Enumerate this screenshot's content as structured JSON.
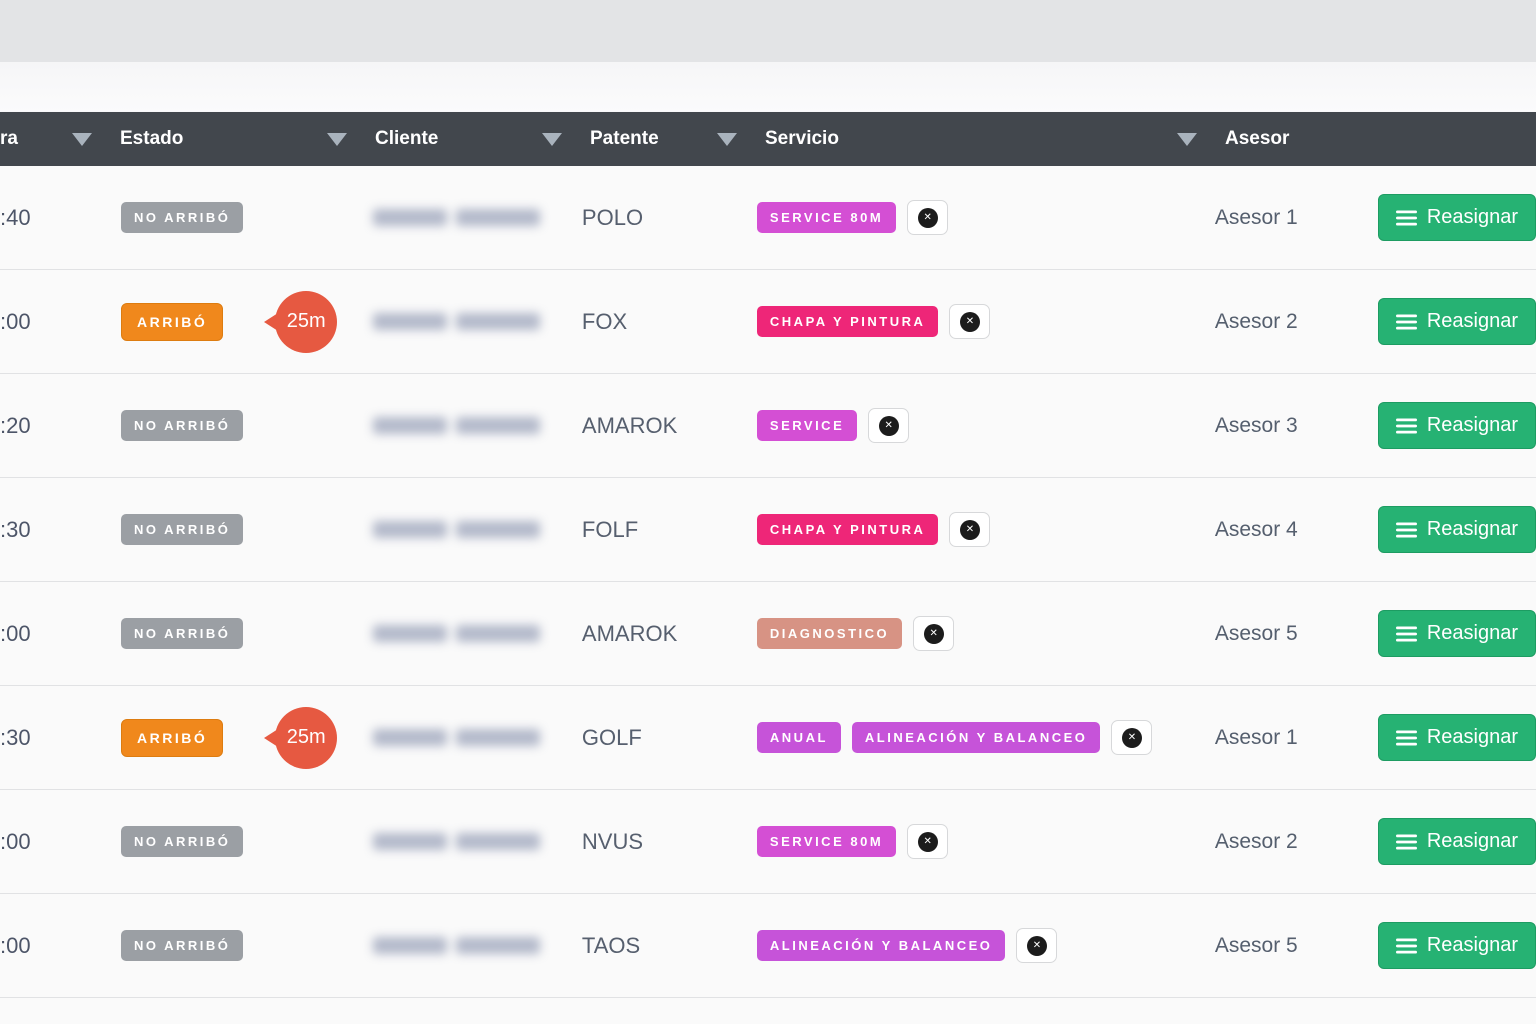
{
  "header": {
    "columns": [
      {
        "label": "ra",
        "sortable": true
      },
      {
        "label": "Estado",
        "sortable": true
      },
      {
        "label": "Cliente",
        "sortable": true
      },
      {
        "label": "Patente",
        "sortable": true
      },
      {
        "label": "Servicio",
        "sortable": true
      },
      {
        "label": "Asesor",
        "sortable": false
      }
    ]
  },
  "buttons": {
    "reassign_label": "Reasignar"
  },
  "icons": {
    "remove": "circle-x-icon",
    "reassign": "list-bars-icon",
    "sort": "triangle-down-icon"
  },
  "colors": {
    "header_bg": "#42474d",
    "status_no_arrived": "#9b9fa4",
    "status_arrived": "#f0881c",
    "wait_bubble": "#e65941",
    "service_magenta": "#d44fd4",
    "service_pink": "#ee2678",
    "service_salmon": "#d79384",
    "service_purple": "#c653d9",
    "reassign_green": "#26b273"
  },
  "table": {
    "rows": [
      {
        "time": ":40",
        "status": "NO ARRIBÓ",
        "arrived": false,
        "wait": null,
        "client_redacted": true,
        "patente": "POLO",
        "services": [
          {
            "label": "SERVICE 80M",
            "color": "#d44fd4"
          }
        ],
        "asesor": "Asesor 1"
      },
      {
        "time": ":00",
        "status": "ARRIBÓ",
        "arrived": true,
        "wait": "25m",
        "client_redacted": true,
        "patente": "FOX",
        "services": [
          {
            "label": "CHAPA Y PINTURA",
            "color": "#ee2678"
          }
        ],
        "asesor": "Asesor 2"
      },
      {
        "time": ":20",
        "status": "NO ARRIBÓ",
        "arrived": false,
        "wait": null,
        "client_redacted": true,
        "patente": "AMAROK",
        "services": [
          {
            "label": "SERVICE",
            "color": "#d44fd4"
          }
        ],
        "asesor": "Asesor 3"
      },
      {
        "time": ":30",
        "status": "NO ARRIBÓ",
        "arrived": false,
        "wait": null,
        "client_redacted": true,
        "patente": "FOLF",
        "services": [
          {
            "label": "CHAPA Y PINTURA",
            "color": "#ee2678"
          }
        ],
        "asesor": "Asesor 4"
      },
      {
        "time": ":00",
        "status": "NO ARRIBÓ",
        "arrived": false,
        "wait": null,
        "client_redacted": true,
        "patente": "AMAROK",
        "services": [
          {
            "label": "DIAGNOSTICO",
            "color": "#d79384"
          }
        ],
        "asesor": "Asesor 5"
      },
      {
        "time": ":30",
        "status": "ARRIBÓ",
        "arrived": true,
        "wait": "25m",
        "client_redacted": true,
        "patente": "GOLF",
        "services": [
          {
            "label": "ANUAL",
            "color": "#c653d9"
          },
          {
            "label": "ALINEACIÓN Y BALANCEO",
            "color": "#c653d9"
          }
        ],
        "asesor": "Asesor 1"
      },
      {
        "time": ":00",
        "status": "NO ARRIBÓ",
        "arrived": false,
        "wait": null,
        "client_redacted": true,
        "patente": "NVUS",
        "services": [
          {
            "label": "SERVICE 80M",
            "color": "#d44fd4"
          }
        ],
        "asesor": "Asesor 2"
      },
      {
        "time": ":00",
        "status": "NO ARRIBÓ",
        "arrived": false,
        "wait": null,
        "client_redacted": true,
        "patente": "TAOS",
        "services": [
          {
            "label": "ALINEACIÓN Y BALANCEO",
            "color": "#c653d9"
          }
        ],
        "asesor": "Asesor 5"
      }
    ]
  }
}
